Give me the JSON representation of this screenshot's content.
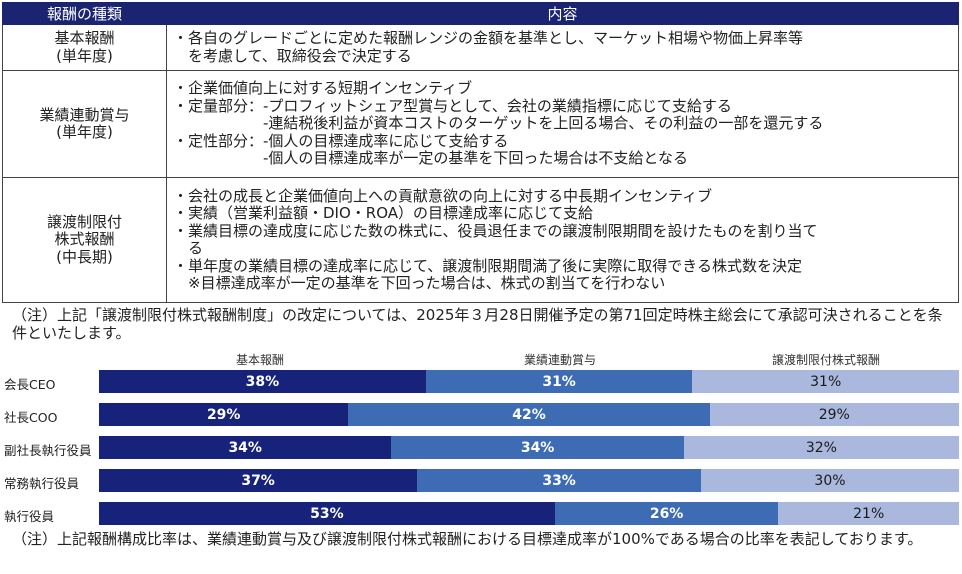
{
  "table": {
    "headers": [
      "報酬の種類",
      "内容"
    ],
    "rows": [
      {
        "category": "基本報酬\n(単年度)",
        "lines": [
          "・各自のグレードごとに定めた報酬レンジの金額を基準とし、マーケット相場や物価上昇率等",
          "　を考慮して、取締役会で決定する"
        ]
      },
      {
        "category": "業績連動賞与\n(単年度)",
        "lines": [
          "・企業価値向上に対する短期インセンティブ",
          "・定量部分：-プロフィットシェア型賞与として、会社の業績指標に応じて支給する",
          "　　　　　　-連結税後利益が資本コストのターゲットを上回る場合、その利益の一部を還元する",
          "・定性部分：-個人の目標達成率に応じて支給する",
          "　　　　　　-個人の目標達成率が一定の基準を下回った場合は不支給となる"
        ]
      },
      {
        "category": "譲渡制限付\n株式報酬\n(中長期)",
        "lines": [
          "・会社の成長と企業価値向上への貢献意欲の向上に対する中長期インセンティブ",
          "・実績（営業利益額・DIO・ROA）の目標達成率に応じて支給",
          "・業績目標の達成度に応じた数の株式に、役員退任までの譲渡制限期間を設けたものを割り当て",
          "　る",
          "・単年度の業績目標の達成率に応じて、譲渡制限期間満了後に実際に取得できる株式数を決定",
          "　※目標達成率が一定の基準を下回った場合は、株式の割当てを行わない"
        ]
      }
    ]
  },
  "note1": "（注）上記「譲渡制限付株式報酬制度」の改定については、2025年３月28日開催予定の第71回定時株主総会にて承認可決されることを条件といたします。",
  "chart_data": {
    "type": "bar",
    "orientation": "horizontal",
    "stacked": true,
    "normalized": true,
    "categories": [
      "会長CEO",
      "社長COO",
      "副社長執行役員",
      "常務執行役員",
      "執行役員"
    ],
    "series": [
      {
        "name": "基本報酬",
        "values": [
          38,
          29,
          34,
          37,
          53
        ],
        "color": "#17237a"
      },
      {
        "name": "業績連動賞与",
        "values": [
          31,
          42,
          34,
          33,
          26
        ],
        "color": "#3d6cb5"
      },
      {
        "name": "譲渡制限付株式報酬",
        "values": [
          31,
          29,
          32,
          30,
          21
        ],
        "color": "#aab8de"
      }
    ],
    "value_suffix": "%",
    "legend_position": "top"
  },
  "note2": "（注）上記報酬構成比率は、業績連動賞与及び譲渡制限付株式報酬における目標達成率が100%である場合の比率を表記しております。"
}
